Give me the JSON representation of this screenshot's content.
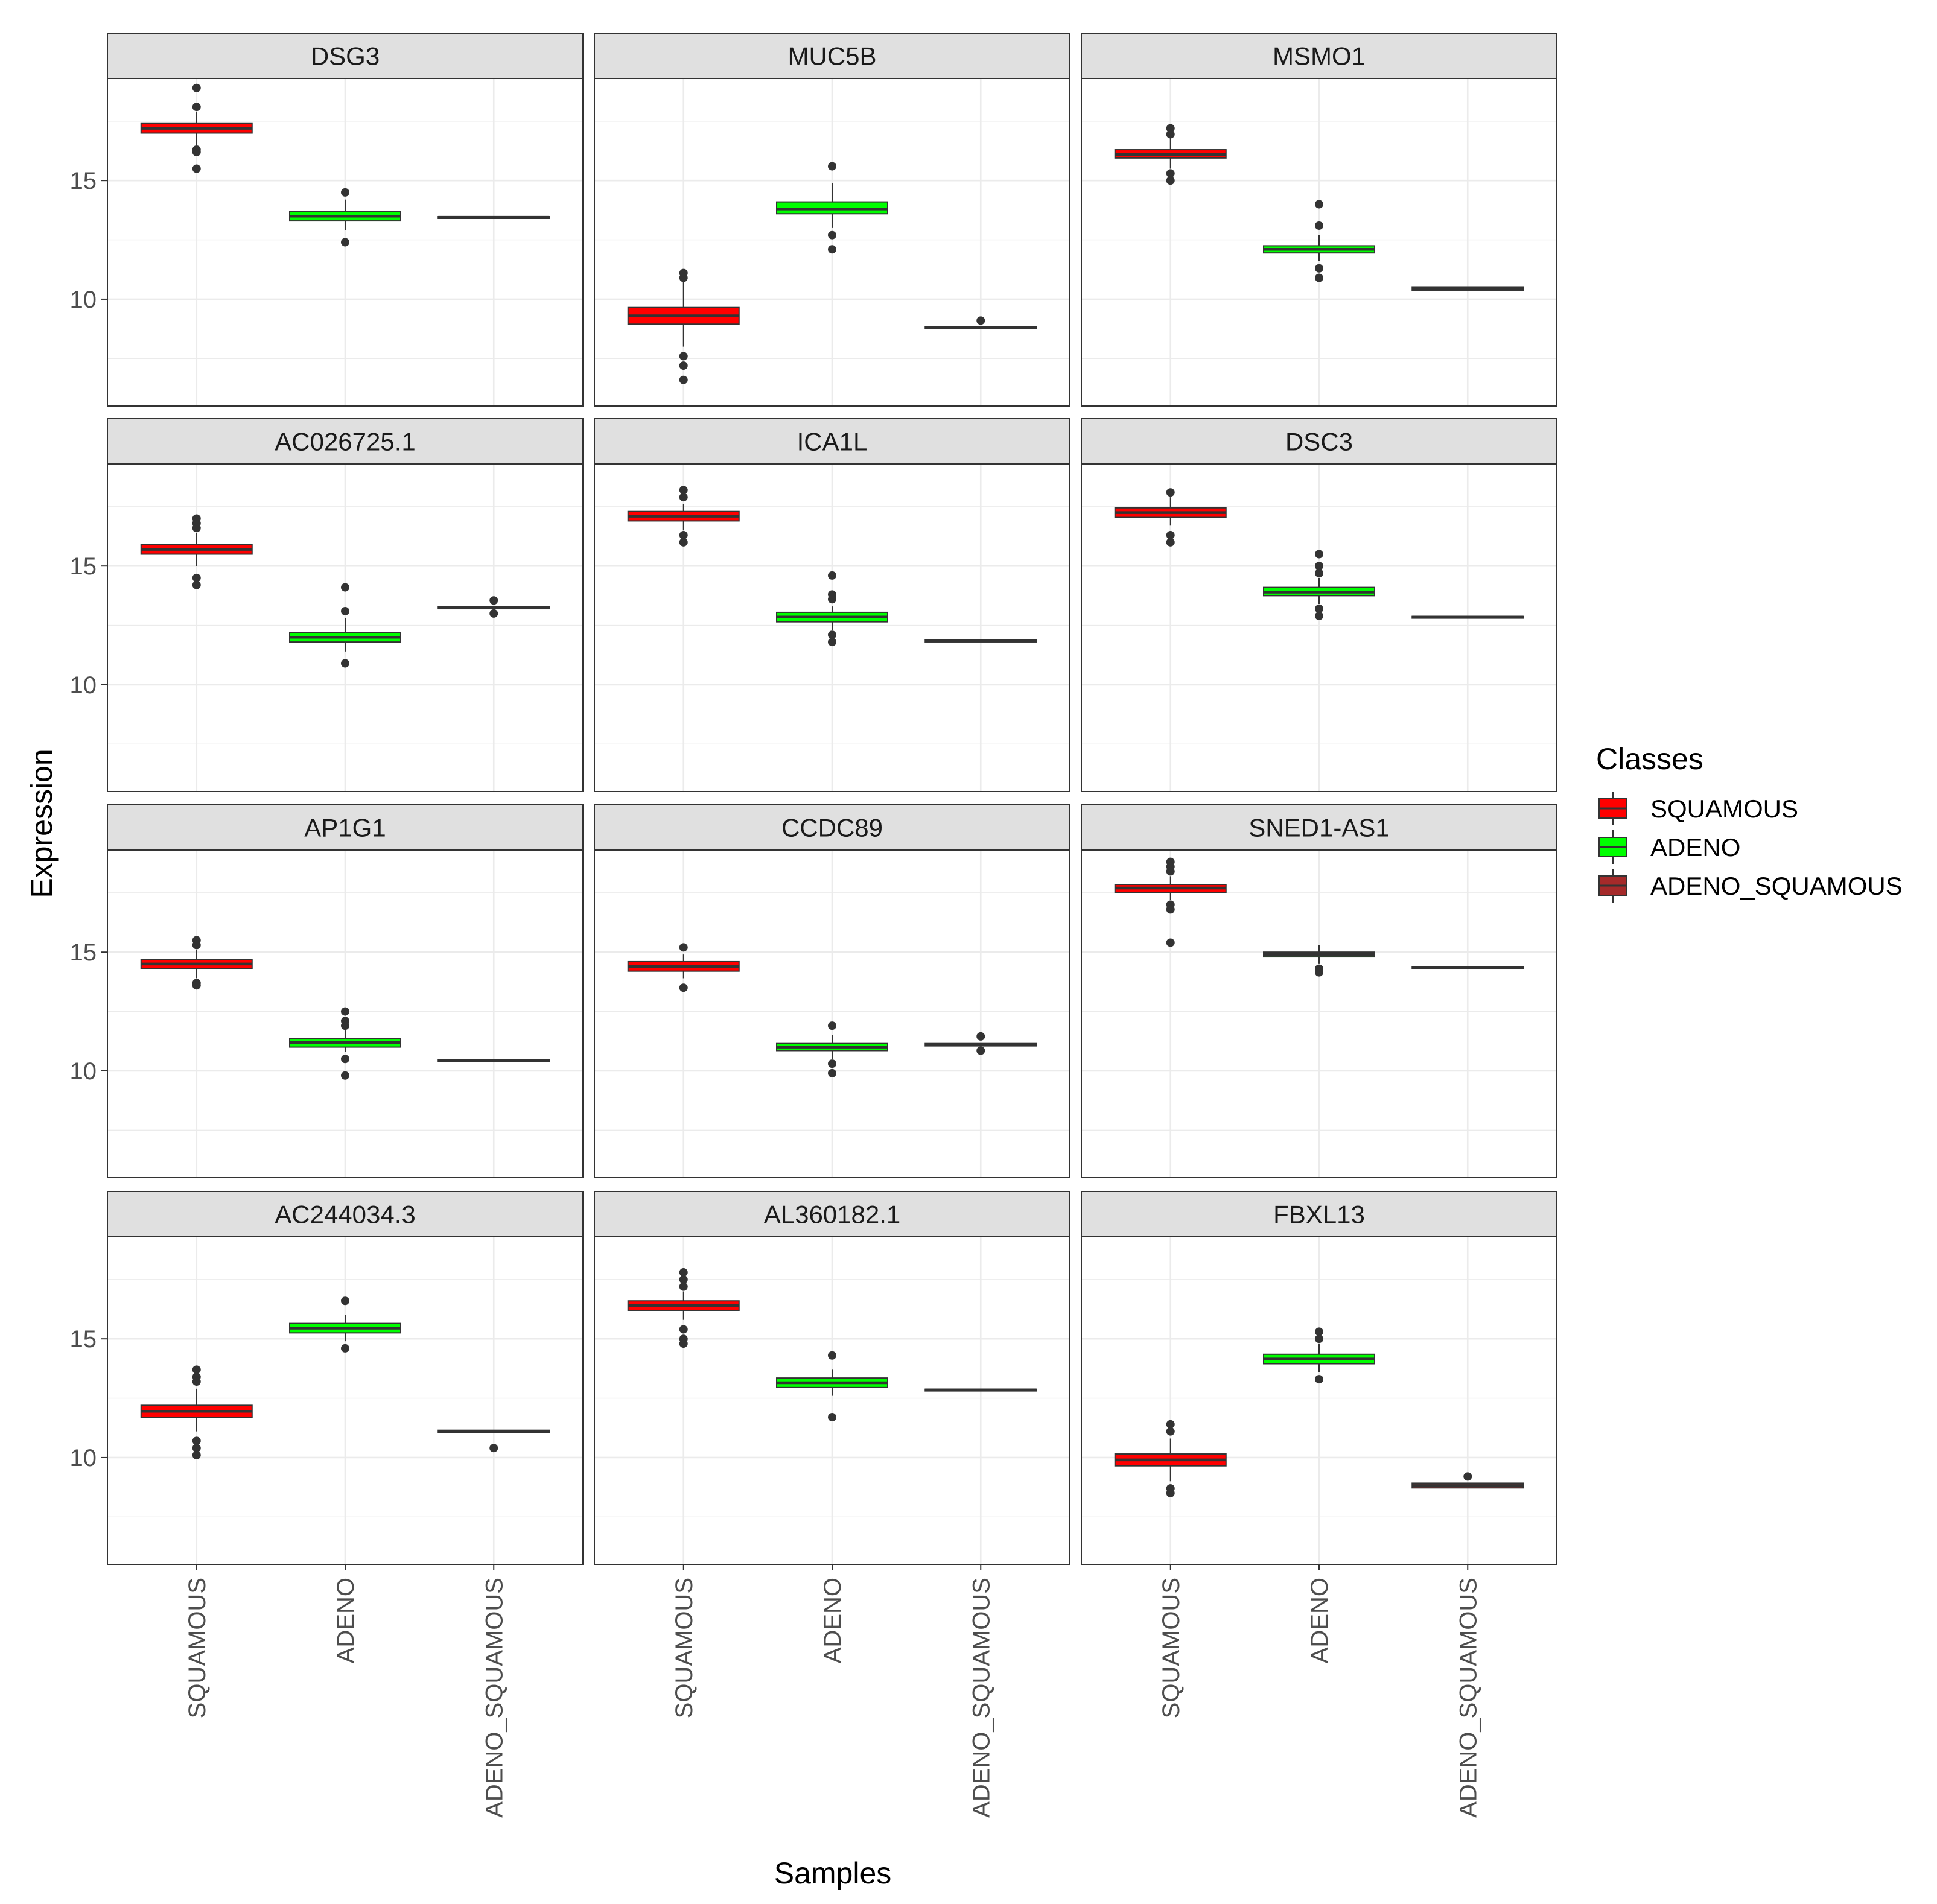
{
  "chart_data": {
    "type": "boxplot-facet",
    "ylabel": "Expression",
    "xlabel": "Samples",
    "legend": {
      "title": "Classes",
      "placement": "right",
      "entries": [
        "SQUAMOUS",
        "ADENO",
        "ADENO_SQUAMOUS"
      ]
    },
    "categories": [
      "SQUAMOUS",
      "ADENO",
      "ADENO_SQUAMOUS"
    ],
    "colors": {
      "SQUAMOUS": "#ff0000",
      "ADENO": "#00ff00",
      "ADENO_SQUAMOUS": "#a52a2a",
      "strip": "#e0e0e0",
      "grid": "#ebebeb",
      "frame": "#333333",
      "point": "#333333",
      "axis_text": "#4d4d4d"
    },
    "ylim": [
      5.5,
      19.3
    ],
    "yticks": [
      10,
      15
    ],
    "ytick_labels": [
      "10",
      "15"
    ],
    "y_minor": [
      7.5,
      12.5,
      17.5
    ],
    "facets": [
      {
        "gene": "DSG3",
        "boxes": [
          {
            "q1": 17.0,
            "median": 17.2,
            "q3": 17.4,
            "wlo": 16.5,
            "whi": 17.9,
            "outliers": [
              18.9,
              18.1,
              16.3,
              16.2,
              15.5
            ]
          },
          {
            "q1": 13.3,
            "median": 13.5,
            "q3": 13.7,
            "wlo": 12.9,
            "whi": 14.2,
            "outliers": [
              14.5,
              12.4
            ]
          },
          {
            "q1": 13.42,
            "median": 13.45,
            "q3": 13.48,
            "wlo": 13.42,
            "whi": 13.48,
            "outliers": []
          }
        ]
      },
      {
        "gene": "MUC5B",
        "boxes": [
          {
            "q1": 8.95,
            "median": 9.3,
            "q3": 9.65,
            "wlo": 8.0,
            "whi": 10.8,
            "outliers": [
              11.1,
              10.9,
              7.6,
              7.2,
              6.6
            ]
          },
          {
            "q1": 13.6,
            "median": 13.8,
            "q3": 14.1,
            "wlo": 13.0,
            "whi": 14.9,
            "outliers": [
              15.6,
              12.7,
              12.1
            ]
          },
          {
            "q1": 8.76,
            "median": 8.8,
            "q3": 8.84,
            "wlo": 8.76,
            "whi": 8.84,
            "outliers": [
              9.1
            ]
          }
        ]
      },
      {
        "gene": "MSMO1",
        "boxes": [
          {
            "q1": 15.95,
            "median": 16.1,
            "q3": 16.3,
            "wlo": 15.5,
            "whi": 16.8,
            "outliers": [
              17.2,
              16.95,
              15.3,
              15.0
            ]
          },
          {
            "q1": 11.95,
            "median": 12.1,
            "q3": 12.25,
            "wlo": 11.6,
            "whi": 12.7,
            "outliers": [
              14.0,
              13.1,
              11.3,
              10.9
            ]
          },
          {
            "q1": 10.38,
            "median": 10.45,
            "q3": 10.52,
            "wlo": 10.38,
            "whi": 10.52,
            "outliers": []
          }
        ]
      },
      {
        "gene": "AC026725.1",
        "boxes": [
          {
            "q1": 15.5,
            "median": 15.7,
            "q3": 15.9,
            "wlo": 15.0,
            "whi": 16.4,
            "outliers": [
              17.0,
              16.8,
              16.6,
              14.5,
              14.2
            ]
          },
          {
            "q1": 11.8,
            "median": 12.0,
            "q3": 12.2,
            "wlo": 11.4,
            "whi": 12.8,
            "outliers": [
              14.1,
              13.1,
              10.9
            ]
          },
          {
            "q1": 13.2,
            "median": 13.25,
            "q3": 13.3,
            "wlo": 13.2,
            "whi": 13.3,
            "outliers": [
              13.55,
              13.0
            ]
          }
        ]
      },
      {
        "gene": "ICA1L",
        "boxes": [
          {
            "q1": 16.9,
            "median": 17.1,
            "q3": 17.3,
            "wlo": 16.5,
            "whi": 17.6,
            "outliers": [
              18.2,
              17.9,
              16.3,
              16.0
            ]
          },
          {
            "q1": 12.65,
            "median": 12.85,
            "q3": 13.05,
            "wlo": 12.3,
            "whi": 13.3,
            "outliers": [
              14.6,
              13.8,
              13.6,
              12.1,
              11.8
            ]
          },
          {
            "q1": 11.82,
            "median": 11.85,
            "q3": 11.88,
            "wlo": 11.82,
            "whi": 11.88,
            "outliers": []
          }
        ]
      },
      {
        "gene": "DSC3",
        "boxes": [
          {
            "q1": 17.05,
            "median": 17.25,
            "q3": 17.45,
            "wlo": 16.7,
            "whi": 17.9,
            "outliers": [
              18.1,
              16.3,
              16.0
            ]
          },
          {
            "q1": 13.75,
            "median": 13.9,
            "q3": 14.1,
            "wlo": 13.4,
            "whi": 14.5,
            "outliers": [
              15.5,
              15.0,
              14.7,
              13.2,
              12.9
            ]
          },
          {
            "q1": 12.82,
            "median": 12.85,
            "q3": 12.88,
            "wlo": 12.82,
            "whi": 12.88,
            "outliers": []
          }
        ]
      },
      {
        "gene": "AP1G1",
        "boxes": [
          {
            "q1": 14.3,
            "median": 14.5,
            "q3": 14.7,
            "wlo": 13.9,
            "whi": 15.1,
            "outliers": [
              15.5,
              15.3,
              13.7,
              13.6
            ]
          },
          {
            "q1": 11.0,
            "median": 11.2,
            "q3": 11.35,
            "wlo": 10.8,
            "whi": 11.7,
            "outliers": [
              12.5,
              12.1,
              11.9,
              10.5,
              9.8
            ]
          },
          {
            "q1": 10.4,
            "median": 10.43,
            "q3": 10.46,
            "wlo": 10.4,
            "whi": 10.46,
            "outliers": []
          }
        ]
      },
      {
        "gene": "CCDC89",
        "boxes": [
          {
            "q1": 14.2,
            "median": 14.4,
            "q3": 14.6,
            "wlo": 13.9,
            "whi": 14.9,
            "outliers": [
              15.2,
              13.5
            ]
          },
          {
            "q1": 10.85,
            "median": 11.0,
            "q3": 11.15,
            "wlo": 10.5,
            "whi": 11.5,
            "outliers": [
              11.9,
              10.3,
              9.9
            ]
          },
          {
            "q1": 11.05,
            "median": 11.1,
            "q3": 11.15,
            "wlo": 11.05,
            "whi": 11.15,
            "outliers": [
              11.45,
              10.85
            ]
          }
        ]
      },
      {
        "gene": "SNED1-AS1",
        "boxes": [
          {
            "q1": 17.5,
            "median": 17.7,
            "q3": 17.85,
            "wlo": 17.2,
            "whi": 18.2,
            "outliers": [
              18.8,
              18.6,
              18.4,
              17.0,
              16.8,
              15.4
            ]
          },
          {
            "q1": 14.8,
            "median": 14.9,
            "q3": 15.0,
            "wlo": 14.5,
            "whi": 15.3,
            "outliers": [
              14.3,
              14.15
            ]
          },
          {
            "q1": 14.32,
            "median": 14.35,
            "q3": 14.38,
            "wlo": 14.32,
            "whi": 14.38,
            "outliers": []
          }
        ]
      },
      {
        "gene": "AC244034.3",
        "boxes": [
          {
            "q1": 11.7,
            "median": 11.95,
            "q3": 12.2,
            "wlo": 11.1,
            "whi": 12.9,
            "outliers": [
              13.7,
              13.4,
              13.2,
              10.7,
              10.4,
              10.1
            ]
          },
          {
            "q1": 15.25,
            "median": 15.45,
            "q3": 15.65,
            "wlo": 14.9,
            "whi": 16.0,
            "outliers": [
              16.6,
              14.6
            ]
          },
          {
            "q1": 11.05,
            "median": 11.1,
            "q3": 11.15,
            "wlo": 11.05,
            "whi": 11.15,
            "outliers": [
              10.4
            ]
          }
        ]
      },
      {
        "gene": "AL360182.1",
        "boxes": [
          {
            "q1": 16.2,
            "median": 16.4,
            "q3": 16.6,
            "wlo": 15.8,
            "whi": 17.0,
            "outliers": [
              17.8,
              17.5,
              17.2,
              15.4,
              15.0,
              14.8
            ]
          },
          {
            "q1": 12.95,
            "median": 13.15,
            "q3": 13.35,
            "wlo": 12.6,
            "whi": 13.7,
            "outliers": [
              14.3,
              11.7
            ]
          },
          {
            "q1": 12.82,
            "median": 12.85,
            "q3": 12.88,
            "wlo": 12.82,
            "whi": 12.88,
            "outliers": []
          }
        ]
      },
      {
        "gene": "FBXL13",
        "boxes": [
          {
            "q1": 9.65,
            "median": 9.9,
            "q3": 10.15,
            "wlo": 9.0,
            "whi": 10.8,
            "outliers": [
              11.4,
              11.1,
              8.7,
              8.5
            ]
          },
          {
            "q1": 13.95,
            "median": 14.15,
            "q3": 14.35,
            "wlo": 13.6,
            "whi": 14.8,
            "outliers": [
              15.3,
              15.0,
              13.3
            ]
          },
          {
            "q1": 8.72,
            "median": 8.82,
            "q3": 8.92,
            "wlo": 8.72,
            "whi": 8.92,
            "outliers": [
              9.2
            ]
          }
        ]
      }
    ]
  }
}
